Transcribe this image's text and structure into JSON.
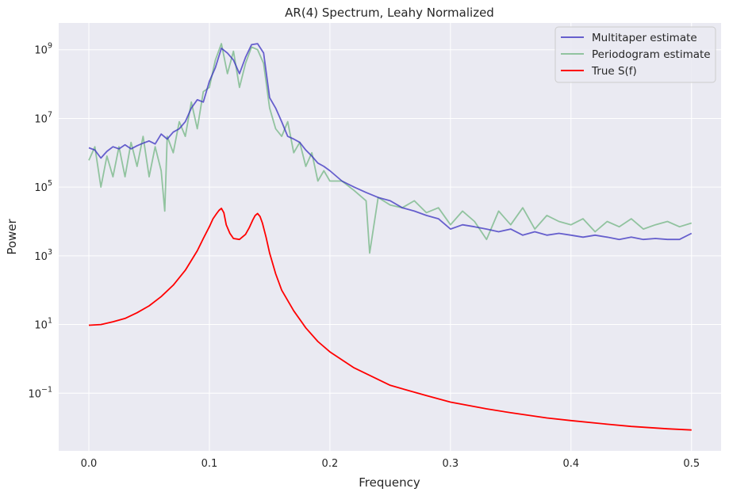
{
  "chart_data": {
    "type": "line",
    "title": "AR(4) Spectrum, Leahy Normalized",
    "xlabel": "Frequency",
    "ylabel": "Power",
    "xlim": [
      -0.025,
      0.5245
    ],
    "ylim": [
      0.0021,
      6000000000.0
    ],
    "yscale": "log",
    "grid": true,
    "legend_position": "top-right",
    "background_color": "#eaeaf2",
    "grid_color": "#ffffff",
    "x_ticks": [
      {
        "value": 0.0,
        "label": "0.0"
      },
      {
        "value": 0.1,
        "label": "0.1"
      },
      {
        "value": 0.2,
        "label": "0.2"
      },
      {
        "value": 0.3,
        "label": "0.3"
      },
      {
        "value": 0.4,
        "label": "0.4"
      },
      {
        "value": 0.5,
        "label": "0.5"
      }
    ],
    "y_ticks": [
      {
        "value": 0.1,
        "base": "10",
        "exp": "−1"
      },
      {
        "value": 10,
        "base": "10",
        "exp": "1"
      },
      {
        "value": 1000,
        "base": "10",
        "exp": "3"
      },
      {
        "value": 100000,
        "base": "10",
        "exp": "5"
      },
      {
        "value": 10000000,
        "base": "10",
        "exp": "7"
      },
      {
        "value": 1000000000,
        "base": "10",
        "exp": "9"
      }
    ],
    "series": [
      {
        "name": "Multitaper estimate",
        "color": "#3a30c0",
        "opacity": 0.75,
        "x": [
          0.0,
          0.005,
          0.01,
          0.015,
          0.02,
          0.025,
          0.03,
          0.035,
          0.04,
          0.045,
          0.05,
          0.055,
          0.06,
          0.065,
          0.07,
          0.075,
          0.08,
          0.085,
          0.09,
          0.095,
          0.1,
          0.105,
          0.11,
          0.115,
          0.12,
          0.125,
          0.13,
          0.135,
          0.14,
          0.145,
          0.15,
          0.155,
          0.16,
          0.165,
          0.17,
          0.175,
          0.18,
          0.185,
          0.19,
          0.195,
          0.2,
          0.21,
          0.22,
          0.23,
          0.24,
          0.25,
          0.26,
          0.27,
          0.28,
          0.29,
          0.3,
          0.31,
          0.32,
          0.33,
          0.34,
          0.35,
          0.36,
          0.37,
          0.38,
          0.39,
          0.4,
          0.41,
          0.42,
          0.43,
          0.44,
          0.45,
          0.46,
          0.47,
          0.48,
          0.49,
          0.5
        ],
        "y": [
          1400000.0,
          1200000.0,
          700000.0,
          1100000.0,
          1500000.0,
          1300000.0,
          1700000.0,
          1300000.0,
          1600000.0,
          1900000.0,
          2200000.0,
          1800000.0,
          3500000.0,
          2500000.0,
          4000000.0,
          5000000.0,
          8000000.0,
          20000000.0,
          35000000.0,
          30000000.0,
          120000000.0,
          300000000.0,
          1100000000.0,
          800000000.0,
          500000000.0,
          200000000.0,
          600000000.0,
          1400000000.0,
          1500000000.0,
          800000000.0,
          40000000.0,
          20000000.0,
          8000000.0,
          3000000.0,
          2500000.0,
          2000000.0,
          1200000.0,
          800000.0,
          500000.0,
          400000.0,
          300000.0,
          150000.0,
          100000.0,
          70000.0,
          50000.0,
          40000.0,
          25000.0,
          20000.0,
          15000.0,
          12000.0,
          6000.0,
          8000.0,
          7000.0,
          6000.0,
          5000.0,
          6000.0,
          4000.0,
          5000.0,
          4000.0,
          4500.0,
          4000.0,
          3500.0,
          4000.0,
          3500.0,
          3000.0,
          3500.0,
          3000.0,
          3200.0,
          3000.0,
          3000.0,
          4500.0
        ]
      },
      {
        "name": "Periodogram estimate",
        "color": "#55a868",
        "opacity": 0.6,
        "x": [
          0.0,
          0.005,
          0.01,
          0.015,
          0.02,
          0.025,
          0.03,
          0.035,
          0.04,
          0.045,
          0.05,
          0.055,
          0.06,
          0.063,
          0.065,
          0.07,
          0.075,
          0.08,
          0.085,
          0.09,
          0.095,
          0.1,
          0.105,
          0.11,
          0.115,
          0.12,
          0.125,
          0.13,
          0.135,
          0.14,
          0.145,
          0.15,
          0.155,
          0.16,
          0.165,
          0.17,
          0.175,
          0.18,
          0.185,
          0.19,
          0.195,
          0.2,
          0.21,
          0.22,
          0.23,
          0.233,
          0.24,
          0.25,
          0.26,
          0.27,
          0.28,
          0.29,
          0.3,
          0.31,
          0.32,
          0.33,
          0.34,
          0.35,
          0.36,
          0.37,
          0.38,
          0.39,
          0.4,
          0.41,
          0.42,
          0.43,
          0.44,
          0.45,
          0.46,
          0.47,
          0.48,
          0.49,
          0.5
        ],
        "y": [
          600000.0,
          1500000.0,
          100000.0,
          800000.0,
          200000.0,
          1500000.0,
          200000.0,
          2000000.0,
          400000.0,
          3000000.0,
          200000.0,
          1500000.0,
          300000.0,
          20000.0,
          3000000.0,
          1000000.0,
          8000000.0,
          3000000.0,
          30000000.0,
          5000000.0,
          60000000.0,
          80000000.0,
          500000000.0,
          1500000000.0,
          200000000.0,
          900000000.0,
          80000000.0,
          400000000.0,
          1200000000.0,
          1000000000.0,
          400000000.0,
          20000000.0,
          5000000.0,
          3000000.0,
          8000000.0,
          1000000.0,
          2000000.0,
          400000.0,
          1000000.0,
          150000.0,
          300000.0,
          150000.0,
          150000.0,
          80000.0,
          40000.0,
          1200.0,
          50000.0,
          30000.0,
          25000.0,
          40000.0,
          18000.0,
          25000.0,
          8000.0,
          20000.0,
          10000.0,
          3000.0,
          20000.0,
          8000.0,
          25000.0,
          6000.0,
          15000.0,
          10000.0,
          8000.0,
          12000.0,
          5000.0,
          10000.0,
          7000.0,
          12000.0,
          6000.0,
          8000.0,
          10000.0,
          7000.0,
          9000.0
        ]
      },
      {
        "name": "True S(f)",
        "color": "#ff0000",
        "opacity": 1.0,
        "x": [
          0.0,
          0.01,
          0.02,
          0.03,
          0.04,
          0.05,
          0.06,
          0.07,
          0.08,
          0.09,
          0.095,
          0.1,
          0.103,
          0.106,
          0.108,
          0.11,
          0.112,
          0.114,
          0.117,
          0.12,
          0.125,
          0.13,
          0.133,
          0.136,
          0.138,
          0.14,
          0.142,
          0.144,
          0.147,
          0.15,
          0.155,
          0.16,
          0.17,
          0.18,
          0.19,
          0.2,
          0.22,
          0.25,
          0.28,
          0.3,
          0.33,
          0.35,
          0.38,
          0.4,
          0.43,
          0.45,
          0.48,
          0.5
        ],
        "y": [
          9.5,
          10,
          12,
          15,
          22,
          35,
          65,
          140,
          380,
          1400,
          3200,
          7000,
          12000,
          17000,
          21000,
          24000,
          18000,
          8000,
          4500,
          3200,
          3000,
          4200,
          6500,
          11000,
          15000,
          17000,
          14000,
          9000,
          3500,
          1200,
          300,
          100,
          25,
          8,
          3.2,
          1.6,
          0.55,
          0.17,
          0.085,
          0.055,
          0.035,
          0.027,
          0.019,
          0.016,
          0.0125,
          0.0108,
          0.0092,
          0.0085
        ]
      }
    ]
  }
}
